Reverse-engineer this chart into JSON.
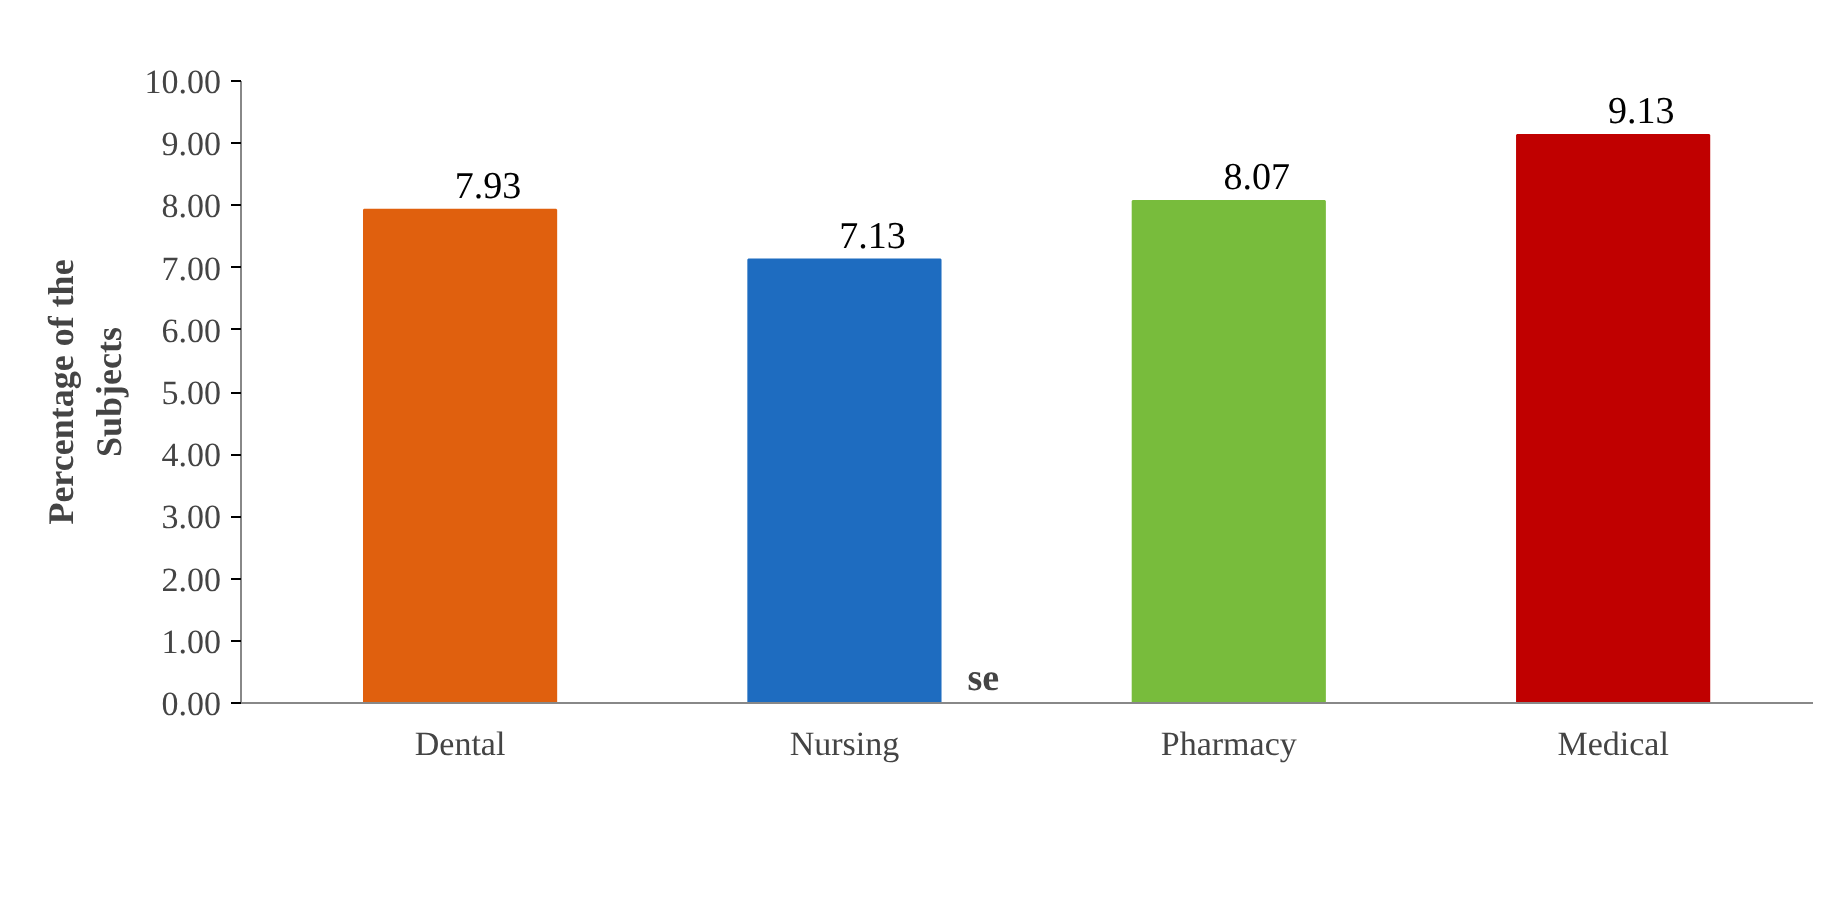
{
  "chart_data": {
    "type": "bar",
    "ylabel": "Percentage of the\nSubjects",
    "categories": [
      "Dental",
      "Nursing",
      "Pharmacy",
      "Medical"
    ],
    "values": [
      7.93,
      7.13,
      8.07,
      9.13
    ],
    "colors": [
      "#e0600e",
      "#1e6cc0",
      "#78bc3c",
      "#c00000"
    ],
    "ylim": [
      0,
      10
    ],
    "yticks": [
      {
        "value": 0,
        "label": "0.00"
      },
      {
        "value": 1,
        "label": "1.00"
      },
      {
        "value": 2,
        "label": "2.00"
      },
      {
        "value": 3,
        "label": "3.00"
      },
      {
        "value": 4,
        "label": "4.00"
      },
      {
        "value": 5,
        "label": "5.00"
      },
      {
        "value": 6,
        "label": "6.00"
      },
      {
        "value": 7,
        "label": "7.00"
      },
      {
        "value": 8,
        "label": "8.00"
      },
      {
        "value": 9,
        "label": "9.00"
      },
      {
        "value": 10,
        "label": "10.00"
      }
    ],
    "data_labels": true,
    "grid": false,
    "annotations": [
      "se"
    ]
  }
}
